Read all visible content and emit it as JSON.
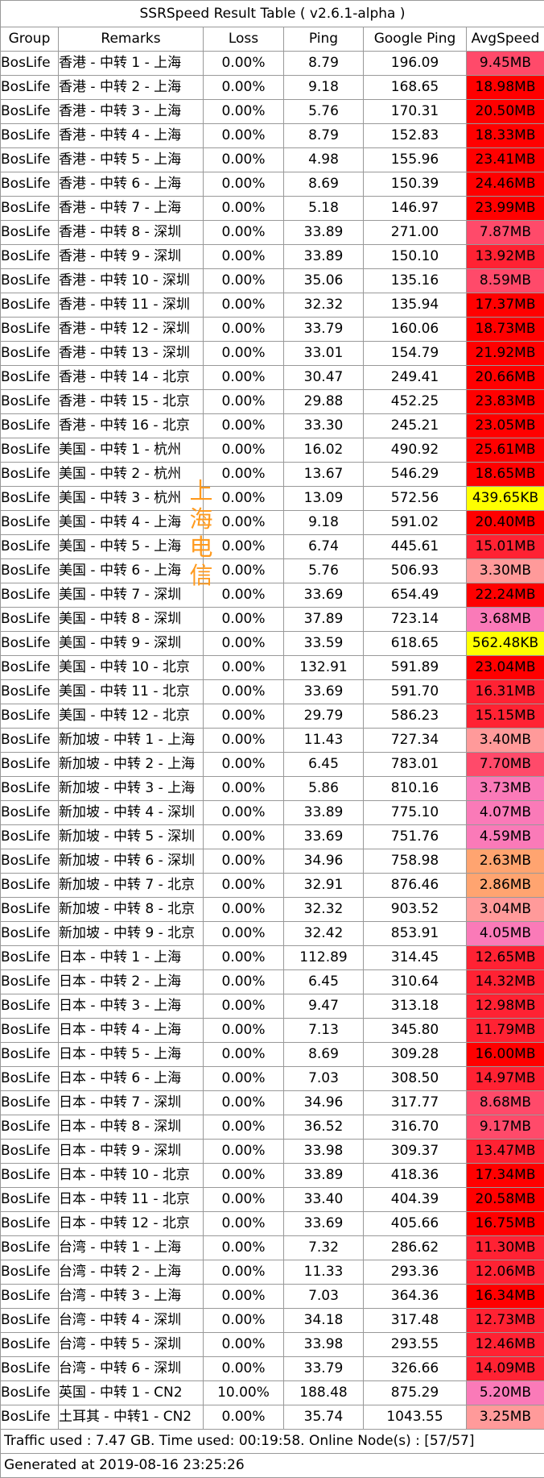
{
  "title": "SSRSpeed Result Table ( v2.6.1-alpha )",
  "headers": [
    "Group",
    "Remarks",
    "Loss",
    "Ping",
    "Google Ping",
    "AvgSpeed"
  ],
  "speed_colors": {
    "yellow": "#ffff00",
    "orange": "#ffa470",
    "pink": "#fa7ab8",
    "lightpink": "#ff9a9a",
    "rose": "#ff4a6a",
    "red": "#ff2233",
    "deepred": "#ff0000"
  },
  "rows": [
    {
      "group": "BosLife",
      "remarks": "香港 - 中转 1 - 上海",
      "loss": "0.00%",
      "ping": "8.79",
      "google_ping": "196.09",
      "speed": "9.45MB",
      "color": "#ff4a6a"
    },
    {
      "group": "BosLife",
      "remarks": "香港 - 中转 2 - 上海",
      "loss": "0.00%",
      "ping": "9.18",
      "google_ping": "168.65",
      "speed": "18.98MB",
      "color": "#ff0000"
    },
    {
      "group": "BosLife",
      "remarks": "香港 - 中转 3 - 上海",
      "loss": "0.00%",
      "ping": "5.76",
      "google_ping": "170.31",
      "speed": "20.50MB",
      "color": "#ff0000"
    },
    {
      "group": "BosLife",
      "remarks": "香港 - 中转 4 - 上海",
      "loss": "0.00%",
      "ping": "8.79",
      "google_ping": "152.83",
      "speed": "18.33MB",
      "color": "#ff0000"
    },
    {
      "group": "BosLife",
      "remarks": "香港 - 中转 5 - 上海",
      "loss": "0.00%",
      "ping": "4.98",
      "google_ping": "155.96",
      "speed": "23.41MB",
      "color": "#ff0000"
    },
    {
      "group": "BosLife",
      "remarks": "香港 - 中转 6 - 上海",
      "loss": "0.00%",
      "ping": "8.69",
      "google_ping": "150.39",
      "speed": "24.46MB",
      "color": "#ff0000"
    },
    {
      "group": "BosLife",
      "remarks": "香港 - 中转 7 - 上海",
      "loss": "0.00%",
      "ping": "5.18",
      "google_ping": "146.97",
      "speed": "23.99MB",
      "color": "#ff0000"
    },
    {
      "group": "BosLife",
      "remarks": "香港 - 中转 8 - 深圳",
      "loss": "0.00%",
      "ping": "33.89",
      "google_ping": "271.00",
      "speed": "7.87MB",
      "color": "#ff4a6a"
    },
    {
      "group": "BosLife",
      "remarks": "香港 - 中转 9 - 深圳",
      "loss": "0.00%",
      "ping": "33.89",
      "google_ping": "150.10",
      "speed": "13.92MB",
      "color": "#ff2233"
    },
    {
      "group": "BosLife",
      "remarks": "香港 - 中转 10 - 深圳",
      "loss": "0.00%",
      "ping": "35.06",
      "google_ping": "135.16",
      "speed": "8.59MB",
      "color": "#ff4a6a"
    },
    {
      "group": "BosLife",
      "remarks": "香港 - 中转 11 - 深圳",
      "loss": "0.00%",
      "ping": "32.32",
      "google_ping": "135.94",
      "speed": "17.37MB",
      "color": "#ff0000"
    },
    {
      "group": "BosLife",
      "remarks": "香港 - 中转 12 - 深圳",
      "loss": "0.00%",
      "ping": "33.79",
      "google_ping": "160.06",
      "speed": "18.73MB",
      "color": "#ff0000"
    },
    {
      "group": "BosLife",
      "remarks": "香港 - 中转 13 - 深圳",
      "loss": "0.00%",
      "ping": "33.01",
      "google_ping": "154.79",
      "speed": "21.92MB",
      "color": "#ff0000"
    },
    {
      "group": "BosLife",
      "remarks": "香港 - 中转 14 - 北京",
      "loss": "0.00%",
      "ping": "30.47",
      "google_ping": "249.41",
      "speed": "20.66MB",
      "color": "#ff0000"
    },
    {
      "group": "BosLife",
      "remarks": "香港 - 中转 15 - 北京",
      "loss": "0.00%",
      "ping": "29.88",
      "google_ping": "452.25",
      "speed": "23.83MB",
      "color": "#ff0000"
    },
    {
      "group": "BosLife",
      "remarks": "香港 - 中转 16 - 北京",
      "loss": "0.00%",
      "ping": "33.30",
      "google_ping": "245.21",
      "speed": "23.05MB",
      "color": "#ff0000"
    },
    {
      "group": "BosLife",
      "remarks": "美国 - 中转 1 - 杭州",
      "loss": "0.00%",
      "ping": "16.02",
      "google_ping": "490.92",
      "speed": "25.61MB",
      "color": "#ff0000"
    },
    {
      "group": "BosLife",
      "remarks": "美国 - 中转 2 - 杭州",
      "loss": "0.00%",
      "ping": "13.67",
      "google_ping": "546.29",
      "speed": "18.65MB",
      "color": "#ff0000"
    },
    {
      "group": "BosLife",
      "remarks": "美国 - 中转 3 - 杭州",
      "loss": "0.00%",
      "ping": "13.09",
      "google_ping": "572.56",
      "speed": "439.65KB",
      "color": "#ffff00"
    },
    {
      "group": "BosLife",
      "remarks": "美国 - 中转 4 - 上海",
      "loss": "0.00%",
      "ping": "9.18",
      "google_ping": "591.02",
      "speed": "20.40MB",
      "color": "#ff0000"
    },
    {
      "group": "BosLife",
      "remarks": "美国 - 中转 5 - 上海",
      "loss": "0.00%",
      "ping": "6.74",
      "google_ping": "445.61",
      "speed": "15.01MB",
      "color": "#ff2233"
    },
    {
      "group": "BosLife",
      "remarks": "美国 - 中转 6 - 上海",
      "loss": "0.00%",
      "ping": "5.76",
      "google_ping": "506.93",
      "speed": "3.30MB",
      "color": "#ff9a9a"
    },
    {
      "group": "BosLife",
      "remarks": "美国 - 中转 7 - 深圳",
      "loss": "0.00%",
      "ping": "33.69",
      "google_ping": "654.49",
      "speed": "22.24MB",
      "color": "#ff0000"
    },
    {
      "group": "BosLife",
      "remarks": "美国 - 中转 8 - 深圳",
      "loss": "0.00%",
      "ping": "37.89",
      "google_ping": "723.14",
      "speed": "3.68MB",
      "color": "#fa7ab8"
    },
    {
      "group": "BosLife",
      "remarks": "美国 - 中转 9 - 深圳",
      "loss": "0.00%",
      "ping": "33.59",
      "google_ping": "618.65",
      "speed": "562.48KB",
      "color": "#ffff00"
    },
    {
      "group": "BosLife",
      "remarks": "美国 - 中转 10 - 北京",
      "loss": "0.00%",
      "ping": "132.91",
      "google_ping": "591.89",
      "speed": "23.04MB",
      "color": "#ff0000"
    },
    {
      "group": "BosLife",
      "remarks": "美国 - 中转 11 - 北京",
      "loss": "0.00%",
      "ping": "33.69",
      "google_ping": "591.70",
      "speed": "16.31MB",
      "color": "#ff2233"
    },
    {
      "group": "BosLife",
      "remarks": "美国 - 中转 12 - 北京",
      "loss": "0.00%",
      "ping": "29.79",
      "google_ping": "586.23",
      "speed": "15.15MB",
      "color": "#ff2233"
    },
    {
      "group": "BosLife",
      "remarks": "新加坡 - 中转 1 - 上海",
      "loss": "0.00%",
      "ping": "11.43",
      "google_ping": "727.34",
      "speed": "3.40MB",
      "color": "#ff9a9a"
    },
    {
      "group": "BosLife",
      "remarks": "新加坡 - 中转 2 - 上海",
      "loss": "0.00%",
      "ping": "6.45",
      "google_ping": "783.01",
      "speed": "7.70MB",
      "color": "#ff4a6a"
    },
    {
      "group": "BosLife",
      "remarks": "新加坡 - 中转 3 - 上海",
      "loss": "0.00%",
      "ping": "5.86",
      "google_ping": "810.16",
      "speed": "3.73MB",
      "color": "#fa7ab8"
    },
    {
      "group": "BosLife",
      "remarks": "新加坡 - 中转 4 - 深圳",
      "loss": "0.00%",
      "ping": "33.89",
      "google_ping": "775.10",
      "speed": "4.07MB",
      "color": "#fa7ab8"
    },
    {
      "group": "BosLife",
      "remarks": "新加坡 - 中转 5 - 深圳",
      "loss": "0.00%",
      "ping": "33.69",
      "google_ping": "751.76",
      "speed": "4.59MB",
      "color": "#fa7ab8"
    },
    {
      "group": "BosLife",
      "remarks": "新加坡 - 中转 6 - 深圳",
      "loss": "0.00%",
      "ping": "34.96",
      "google_ping": "758.98",
      "speed": "2.63MB",
      "color": "#ffa470"
    },
    {
      "group": "BosLife",
      "remarks": "新加坡 - 中转 7 - 北京",
      "loss": "0.00%",
      "ping": "32.91",
      "google_ping": "876.46",
      "speed": "2.86MB",
      "color": "#ffa470"
    },
    {
      "group": "BosLife",
      "remarks": "新加坡 - 中转 8 - 北京",
      "loss": "0.00%",
      "ping": "32.32",
      "google_ping": "903.52",
      "speed": "3.04MB",
      "color": "#ff9a9a"
    },
    {
      "group": "BosLife",
      "remarks": "新加坡 - 中转 9 - 北京",
      "loss": "0.00%",
      "ping": "32.42",
      "google_ping": "853.91",
      "speed": "4.05MB",
      "color": "#fa7ab8"
    },
    {
      "group": "BosLife",
      "remarks": "日本 - 中转 1 - 上海",
      "loss": "0.00%",
      "ping": "112.89",
      "google_ping": "314.45",
      "speed": "12.65MB",
      "color": "#ff2233"
    },
    {
      "group": "BosLife",
      "remarks": "日本 - 中转 2 - 上海",
      "loss": "0.00%",
      "ping": "6.45",
      "google_ping": "310.64",
      "speed": "14.32MB",
      "color": "#ff2233"
    },
    {
      "group": "BosLife",
      "remarks": "日本 - 中转 3 - 上海",
      "loss": "0.00%",
      "ping": "9.47",
      "google_ping": "313.18",
      "speed": "12.98MB",
      "color": "#ff2233"
    },
    {
      "group": "BosLife",
      "remarks": "日本 - 中转 4 - 上海",
      "loss": "0.00%",
      "ping": "7.13",
      "google_ping": "345.80",
      "speed": "11.79MB",
      "color": "#ff2233"
    },
    {
      "group": "BosLife",
      "remarks": "日本 - 中转 5 - 上海",
      "loss": "0.00%",
      "ping": "8.69",
      "google_ping": "309.28",
      "speed": "16.00MB",
      "color": "#ff0000"
    },
    {
      "group": "BosLife",
      "remarks": "日本 - 中转 6 - 上海",
      "loss": "0.00%",
      "ping": "7.03",
      "google_ping": "308.50",
      "speed": "14.97MB",
      "color": "#ff2233"
    },
    {
      "group": "BosLife",
      "remarks": "日本 - 中转 7 - 深圳",
      "loss": "0.00%",
      "ping": "34.96",
      "google_ping": "317.77",
      "speed": "8.68MB",
      "color": "#ff4a6a"
    },
    {
      "group": "BosLife",
      "remarks": "日本 - 中转 8 - 深圳",
      "loss": "0.00%",
      "ping": "36.52",
      "google_ping": "316.70",
      "speed": "9.17MB",
      "color": "#ff4a6a"
    },
    {
      "group": "BosLife",
      "remarks": "日本 - 中转 9 - 深圳",
      "loss": "0.00%",
      "ping": "33.98",
      "google_ping": "309.37",
      "speed": "13.47MB",
      "color": "#ff2233"
    },
    {
      "group": "BosLife",
      "remarks": "日本 - 中转 10 - 北京",
      "loss": "0.00%",
      "ping": "33.89",
      "google_ping": "418.36",
      "speed": "17.34MB",
      "color": "#ff0000"
    },
    {
      "group": "BosLife",
      "remarks": "日本 - 中转 11 - 北京",
      "loss": "0.00%",
      "ping": "33.40",
      "google_ping": "404.39",
      "speed": "20.58MB",
      "color": "#ff0000"
    },
    {
      "group": "BosLife",
      "remarks": "日本 - 中转 12 - 北京",
      "loss": "0.00%",
      "ping": "33.69",
      "google_ping": "405.66",
      "speed": "16.75MB",
      "color": "#ff0000"
    },
    {
      "group": "BosLife",
      "remarks": "台湾 - 中转 1 - 上海",
      "loss": "0.00%",
      "ping": "7.32",
      "google_ping": "286.62",
      "speed": "11.30MB",
      "color": "#ff2233"
    },
    {
      "group": "BosLife",
      "remarks": "台湾 - 中转 2 - 上海",
      "loss": "0.00%",
      "ping": "11.33",
      "google_ping": "293.36",
      "speed": "12.06MB",
      "color": "#ff2233"
    },
    {
      "group": "BosLife",
      "remarks": "台湾 - 中转 3 - 上海",
      "loss": "0.00%",
      "ping": "7.03",
      "google_ping": "364.36",
      "speed": "16.34MB",
      "color": "#ff0000"
    },
    {
      "group": "BosLife",
      "remarks": "台湾 - 中转 4 - 深圳",
      "loss": "0.00%",
      "ping": "34.18",
      "google_ping": "317.48",
      "speed": "12.73MB",
      "color": "#ff2233"
    },
    {
      "group": "BosLife",
      "remarks": "台湾 - 中转 5 - 深圳",
      "loss": "0.00%",
      "ping": "33.98",
      "google_ping": "293.55",
      "speed": "12.46MB",
      "color": "#ff2233"
    },
    {
      "group": "BosLife",
      "remarks": "台湾 - 中转 6 - 深圳",
      "loss": "0.00%",
      "ping": "33.79",
      "google_ping": "326.66",
      "speed": "14.09MB",
      "color": "#ff2233"
    },
    {
      "group": "BosLife",
      "remarks": "英国 - 中转 1 - CN2",
      "loss": "10.00%",
      "ping": "188.48",
      "google_ping": "875.29",
      "speed": "5.20MB",
      "color": "#fa7ab8"
    },
    {
      "group": "BosLife",
      "remarks": "土耳其 - 中转1 - CN2",
      "loss": "0.00%",
      "ping": "35.74",
      "google_ping": "1043.55",
      "speed": "3.25MB",
      "color": "#ff9a9a"
    }
  ],
  "footer": {
    "summary": "Traffic used : 7.47 GB. Time used: 00:19:58. Online Node(s) : [57/57]",
    "generated": "Generated at 2019-08-16 23:25:26"
  },
  "overlay": {
    "chars": [
      "上",
      "海",
      "电",
      "信"
    ],
    "color": "#ff9a1e"
  }
}
